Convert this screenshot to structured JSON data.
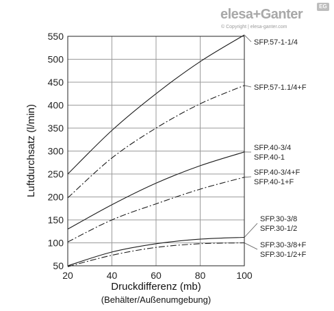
{
  "brand": {
    "logo_text": "elesa+Ganter",
    "badge": "EG",
    "copyright": "© Copyright | elesa-ganter.com"
  },
  "chart_data": {
    "type": "line",
    "xlabel": "Druckdifferenz (mb)",
    "xlabel_sub": "(Behälter/Außenumgebung)",
    "ylabel": "Luftdurchsatz (l/min)",
    "xlim": [
      20,
      100
    ],
    "ylim": [
      50,
      550
    ],
    "x_ticks": [
      "20",
      "40",
      "60",
      "80",
      "100"
    ],
    "y_ticks": [
      "50",
      "100",
      "150",
      "200",
      "250",
      "300",
      "350",
      "400",
      "450",
      "500",
      "550"
    ],
    "grid": true,
    "x": [
      20,
      40,
      60,
      80,
      100
    ],
    "series": [
      {
        "values": [
          250,
          345,
          425,
          495,
          553
        ],
        "style": "solid",
        "labels": [
          "SFP.57-1-1/4"
        ]
      },
      {
        "values": [
          198,
          285,
          350,
          403,
          443
        ],
        "style": "dashdot",
        "labels": [
          "SFP.57-1.1/4+F"
        ]
      },
      {
        "values": [
          130,
          183,
          230,
          268,
          298
        ],
        "style": "solid",
        "labels": [
          "SFP.40-3/4",
          "SFP.40-1"
        ]
      },
      {
        "values": [
          102,
          150,
          185,
          217,
          243
        ],
        "style": "dashdot",
        "labels": [
          "SFP.40-3/4+F",
          "SFP.40-1+F"
        ]
      },
      {
        "values": [
          50,
          80,
          98,
          108,
          112
        ],
        "style": "solid",
        "labels": [
          "SFP.30-3/8",
          "SFP.30-1/2"
        ]
      },
      {
        "values": [
          48,
          73,
          90,
          98,
          100
        ],
        "style": "dashdot",
        "labels": [
          "SFP.30-3/8+F",
          "SFP.30-1/2+F"
        ]
      }
    ]
  }
}
